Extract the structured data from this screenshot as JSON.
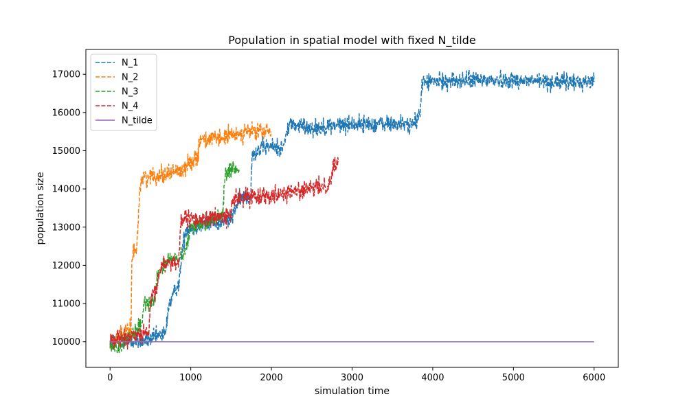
{
  "chart_data": {
    "type": "line",
    "title": "Population in spatial model with fixed N_tilde",
    "xlabel": "simulation time",
    "ylabel": "population size",
    "xlim": [
      -300,
      6300
    ],
    "ylim": [
      9330,
      17650
    ],
    "xticks": [
      0,
      1000,
      2000,
      3000,
      4000,
      5000,
      6000
    ],
    "yticks": [
      10000,
      11000,
      12000,
      13000,
      14000,
      15000,
      16000,
      17000
    ],
    "grid": false,
    "legend_position": "top-left",
    "series": [
      {
        "name": "N_1",
        "color": "#1f77b4",
        "style": "dashed",
        "noise": 110,
        "points": [
          [
            0,
            10050
          ],
          [
            300,
            10000
          ],
          [
            500,
            10050
          ],
          [
            600,
            10150
          ],
          [
            690,
            10200
          ],
          [
            720,
            10900
          ],
          [
            800,
            11300
          ],
          [
            860,
            11600
          ],
          [
            900,
            12500
          ],
          [
            950,
            13000
          ],
          [
            1000,
            13000
          ],
          [
            1400,
            13150
          ],
          [
            1500,
            13200
          ],
          [
            1560,
            13550
          ],
          [
            1650,
            13800
          ],
          [
            1740,
            13800
          ],
          [
            1760,
            14900
          ],
          [
            1900,
            15100
          ],
          [
            2150,
            15100
          ],
          [
            2220,
            15700
          ],
          [
            2500,
            15600
          ],
          [
            3000,
            15700
          ],
          [
            3500,
            15700
          ],
          [
            3800,
            15700
          ],
          [
            3850,
            16200
          ],
          [
            3870,
            16800
          ],
          [
            4500,
            16850
          ],
          [
            5000,
            16850
          ],
          [
            5500,
            16800
          ],
          [
            6000,
            16800
          ]
        ]
      },
      {
        "name": "N_2",
        "color": "#ff7f0e",
        "style": "dashed",
        "noise": 110,
        "points": [
          [
            0,
            10000
          ],
          [
            200,
            10250
          ],
          [
            260,
            10300
          ],
          [
            270,
            12200
          ],
          [
            330,
            12500
          ],
          [
            370,
            14000
          ],
          [
            400,
            14300
          ],
          [
            700,
            14400
          ],
          [
            900,
            14500
          ],
          [
            1000,
            14700
          ],
          [
            1100,
            14900
          ],
          [
            1100,
            15300
          ],
          [
            1350,
            15300
          ],
          [
            1500,
            15400
          ],
          [
            1700,
            15500
          ],
          [
            2000,
            15500
          ]
        ]
      },
      {
        "name": "N_3",
        "color": "#2ca02c",
        "style": "dashed",
        "noise": 100,
        "points": [
          [
            0,
            9900
          ],
          [
            100,
            9850
          ],
          [
            300,
            10200
          ],
          [
            400,
            10500
          ],
          [
            420,
            11000
          ],
          [
            550,
            11100
          ],
          [
            590,
            11800
          ],
          [
            700,
            12100
          ],
          [
            900,
            12200
          ],
          [
            950,
            12500
          ],
          [
            1000,
            13000
          ],
          [
            1100,
            13100
          ],
          [
            1300,
            13200
          ],
          [
            1400,
            13400
          ],
          [
            1420,
            14300
          ],
          [
            1500,
            14500
          ],
          [
            1600,
            14500
          ]
        ]
      },
      {
        "name": "N_4",
        "color": "#d62728",
        "style": "dashed",
        "noise": 110,
        "points": [
          [
            0,
            10050
          ],
          [
            300,
            10150
          ],
          [
            480,
            10200
          ],
          [
            500,
            11000
          ],
          [
            580,
            11400
          ],
          [
            600,
            11700
          ],
          [
            650,
            12050
          ],
          [
            850,
            12100
          ],
          [
            880,
            13200
          ],
          [
            1100,
            13200
          ],
          [
            1500,
            13300
          ],
          [
            1510,
            13700
          ],
          [
            1700,
            13800
          ],
          [
            2000,
            13850
          ],
          [
            2500,
            14000
          ],
          [
            2700,
            14100
          ],
          [
            2750,
            14300
          ],
          [
            2760,
            14600
          ],
          [
            2830,
            14700
          ]
        ]
      },
      {
        "name": "N_tilde",
        "color": "#9467bd",
        "style": "solid",
        "noise": 0,
        "points": [
          [
            0,
            10000
          ],
          [
            6000,
            10000
          ]
        ]
      }
    ]
  }
}
